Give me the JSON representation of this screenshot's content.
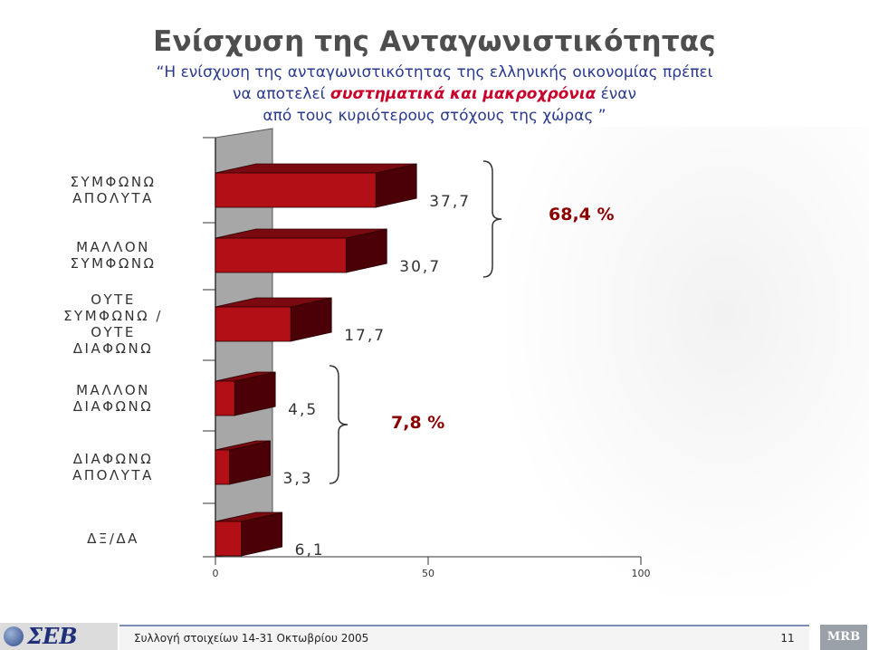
{
  "header": {
    "title": "Ενίσχυση της Ανταγωνιστικότητας",
    "quote_line1": "“Η ενίσχυση της ανταγωνιστικότητας της ελληνικής οικονομίας πρέπει",
    "quote_line2_before": "να αποτελεί ",
    "quote_line2_highlight": "συστηματικά και μακροχρόνια",
    "quote_line2_after": " έναν",
    "quote_line3": "από τους κυριότερους στόχους της χώρας ”",
    "highlight_color": "#c8002a"
  },
  "chart_data": {
    "type": "bar",
    "orientation": "horizontal",
    "categories": [
      [
        "ΣΥΜΦΩΝΩ",
        "ΑΠΟΛΥΤΑ"
      ],
      [
        "ΜΑΛΛΟΝ",
        "ΣΥΜΦΩΝΩ"
      ],
      [
        "ΟΥΤΕ",
        "ΣΥΜΦΩΝΩ /",
        "ΟΥΤΕ",
        "ΔΙΑΦΩΝΩ"
      ],
      [
        "ΜΑΛΛΟΝ",
        "ΔΙΑΦΩΝΩ"
      ],
      [
        "ΔΙΑΦΩΝΩ",
        "ΑΠΟΛΥΤΑ"
      ],
      [
        "ΔΞ/ΔΑ"
      ]
    ],
    "values": [
      37.7,
      30.7,
      17.7,
      4.5,
      3.3,
      6.1
    ],
    "value_labels": [
      "37,7",
      "30,7",
      "17,7",
      "4,5",
      "3,3",
      "6,1"
    ],
    "xlim": [
      0,
      100
    ],
    "x_ticks": [
      "0",
      "50",
      "100"
    ],
    "bar_color": "#b30f17",
    "grid": false,
    "annotations": [
      {
        "label": "68,4 %",
        "group": [
          0,
          1
        ]
      },
      {
        "label": "7,8 %",
        "group": [
          3,
          4
        ]
      }
    ]
  },
  "footer": {
    "logo_text": "ΣΕΒ",
    "text": "Συλλογή στοιχείων 14-31 Οκτωβρίου 2005",
    "page": "11",
    "brand": "MRB"
  }
}
